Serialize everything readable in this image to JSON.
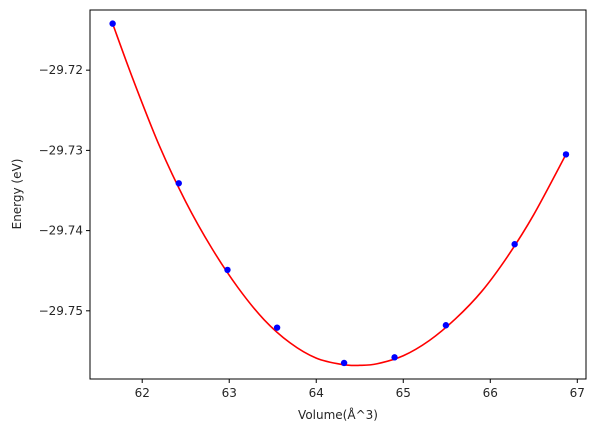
{
  "chart_data": {
    "type": "scatter",
    "title": "",
    "xlabel": "Volume(Å^3)",
    "ylabel": "Energy (eV)",
    "xlim": [
      61.4,
      67.1
    ],
    "ylim": [
      -29.7585,
      -29.7125
    ],
    "xticks": [
      62,
      63,
      64,
      65,
      66,
      67
    ],
    "xtick_labels": [
      "62",
      "63",
      "64",
      "65",
      "66",
      "67"
    ],
    "yticks": [
      -29.72,
      -29.73,
      -29.74,
      -29.75
    ],
    "ytick_labels": [
      "−29.72",
      "−29.73",
      "−29.74",
      "−29.75"
    ],
    "grid": false,
    "series": [
      {
        "kind": "points",
        "color": "#0000ff",
        "x": [
          61.66,
          62.42,
          62.98,
          63.55,
          64.32,
          64.9,
          65.49,
          66.28,
          66.87
        ],
        "y": [
          -29.7142,
          -29.7341,
          -29.7449,
          -29.7521,
          -29.7565,
          -29.7558,
          -29.7518,
          -29.7417,
          -29.7305
        ]
      },
      {
        "kind": "fit-curve",
        "color": "#ff0000",
        "x": [
          61.66,
          61.9,
          62.2,
          62.5,
          62.8,
          63.1,
          63.4,
          63.7,
          64.0,
          64.3,
          64.5,
          64.7,
          65.0,
          65.3,
          65.6,
          65.9,
          66.2,
          66.5,
          66.87
        ],
        "y": [
          -29.7142,
          -29.7213,
          -29.7295,
          -29.7364,
          -29.7422,
          -29.7471,
          -29.7511,
          -29.754,
          -29.7559,
          -29.7567,
          -29.7568,
          -29.7566,
          -29.7556,
          -29.7537,
          -29.751,
          -29.7476,
          -29.7432,
          -29.738,
          -29.7305
        ]
      }
    ]
  }
}
